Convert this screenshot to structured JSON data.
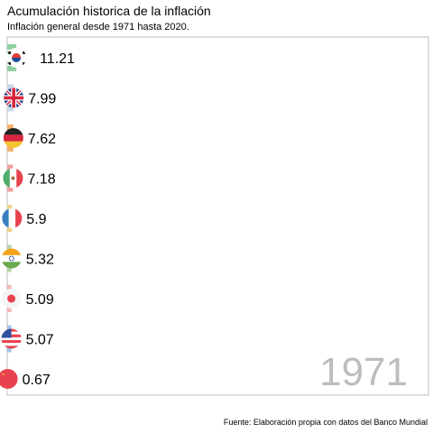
{
  "title": "Acumulación historica de la inflación",
  "subtitle": "Inflación general desde 1971 hasta 2020.",
  "caption": "Fuente: Elaboración propia con datos del Banco Mundial",
  "year_label": "1971",
  "chart_data": {
    "type": "bar",
    "orientation": "horizontal",
    "categories": [
      "Corea del Sur",
      "Reino Unido",
      "Alemania",
      "México",
      "Francia",
      "India",
      "Japón",
      "Estados Unidos",
      "China"
    ],
    "flags": [
      "korea-flag-icon",
      "uk-flag-icon",
      "germany-flag-icon",
      "mexico-flag-icon",
      "france-flag-icon",
      "india-flag-icon",
      "japan-flag-icon",
      "usa-flag-icon",
      "china-flag-icon"
    ],
    "values": [
      11.21,
      7.99,
      7.62,
      7.18,
      5.9,
      5.32,
      5.09,
      5.07,
      0.67
    ],
    "value_labels": [
      "11.21",
      "7.99",
      "7.62",
      "7.18",
      "5.9",
      "5.32",
      "5.09",
      "5.07",
      "0.67"
    ],
    "colors": [
      "#8fcfa0",
      "#c8daea",
      "#f6b26b",
      "#f4a0a0",
      "#f1d48a",
      "#b6d7a8",
      "#f4b6b6",
      "#9fc5e8",
      "#f4cccc"
    ]
  }
}
